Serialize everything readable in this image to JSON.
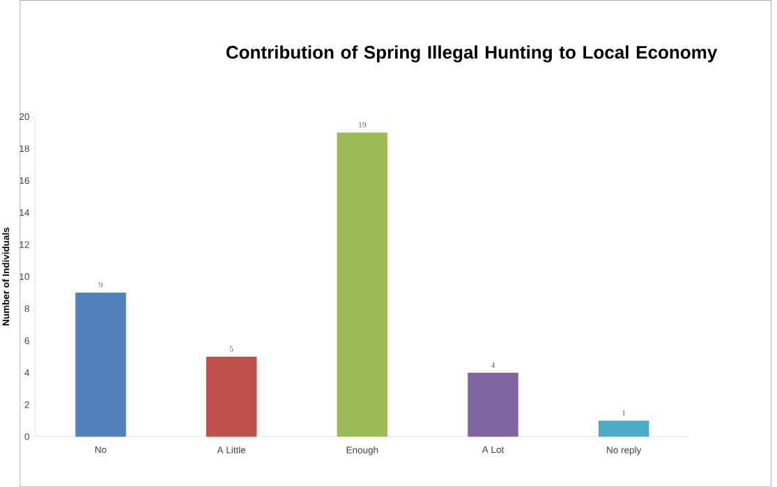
{
  "chart_data": {
    "type": "bar",
    "title": "Contribution of Spring Illegal Hunting to Local Economy",
    "ylabel": "Number of Individuals",
    "categories": [
      "No",
      "A Little",
      "Enough",
      "A Lot",
      "No reply"
    ],
    "values": [
      9,
      5,
      19,
      4,
      1
    ],
    "colors": [
      "#4f81bd",
      "#c0504d",
      "#9bbb59",
      "#8064a2",
      "#4bacc6"
    ],
    "ylim": [
      0,
      20
    ],
    "yticks": [
      0,
      2,
      4,
      6,
      8,
      10,
      12,
      14,
      16,
      18,
      20
    ],
    "data_labels": true
  }
}
